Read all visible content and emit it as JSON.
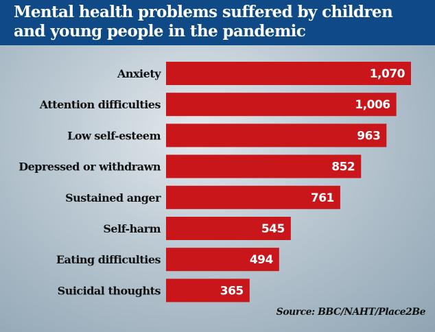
{
  "chart_data": {
    "type": "bar",
    "orientation": "horizontal",
    "title": "Mental health problems suffered by children and young people in the pandemic",
    "categories": [
      "Anxiety",
      "Attention difficulties",
      "Low self-esteem",
      "Depressed or withdrawn",
      "Sustained anger",
      "Self-harm",
      "Eating difficulties",
      "Suicidal thoughts"
    ],
    "values": [
      1070,
      1006,
      963,
      852,
      761,
      545,
      494,
      365
    ],
    "value_labels": [
      "1,070",
      "1,006",
      "963",
      "852",
      "761",
      "545",
      "494",
      "365"
    ],
    "source": "Source: BBC/NAHT/Place2Be",
    "bar_color": "#c8161b",
    "header_color": "#0f4a86",
    "grid": false
  }
}
